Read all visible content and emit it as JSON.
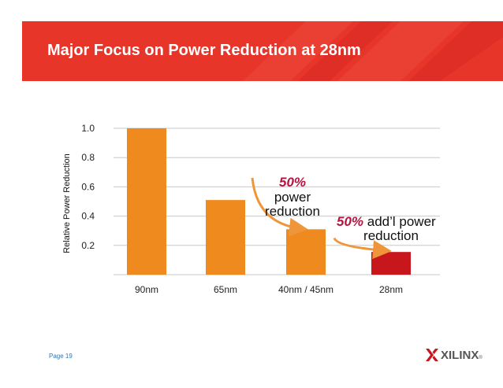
{
  "header": {
    "title": "Major Focus on Power Reduction at 28nm"
  },
  "footer": {
    "page_label": "Page 19",
    "logo_text": "XILINX",
    "logo_mark": "®"
  },
  "colors": {
    "banner": "#e8352a",
    "bar": "#ee8a1e",
    "bar_highlight": "#c8161d",
    "annotation_accent": "#b5123f",
    "arrow": "#f0963a"
  },
  "chart_data": {
    "type": "bar",
    "title": "Major Focus on Power Reduction at 28nm",
    "categories": [
      "90nm",
      "65nm",
      "40nm / 45nm",
      "28nm"
    ],
    "values": [
      1.0,
      0.51,
      0.31,
      0.155
    ],
    "ylabel": "Relative Power Reduction",
    "xlabel": "",
    "ylim": [
      0,
      1.0
    ],
    "yticks": [
      0.2,
      0.4,
      0.6,
      0.8,
      1.0
    ],
    "ytick_labels": [
      "0.2",
      "0.4",
      "0.6",
      "0.8",
      "1.0"
    ],
    "grid": true,
    "annotations": [
      {
        "accent": "50%",
        "lines": [
          "power",
          "reduction"
        ]
      },
      {
        "accent": "50%",
        "rest": " add’l power",
        "lines": [
          "reduction"
        ]
      }
    ]
  }
}
